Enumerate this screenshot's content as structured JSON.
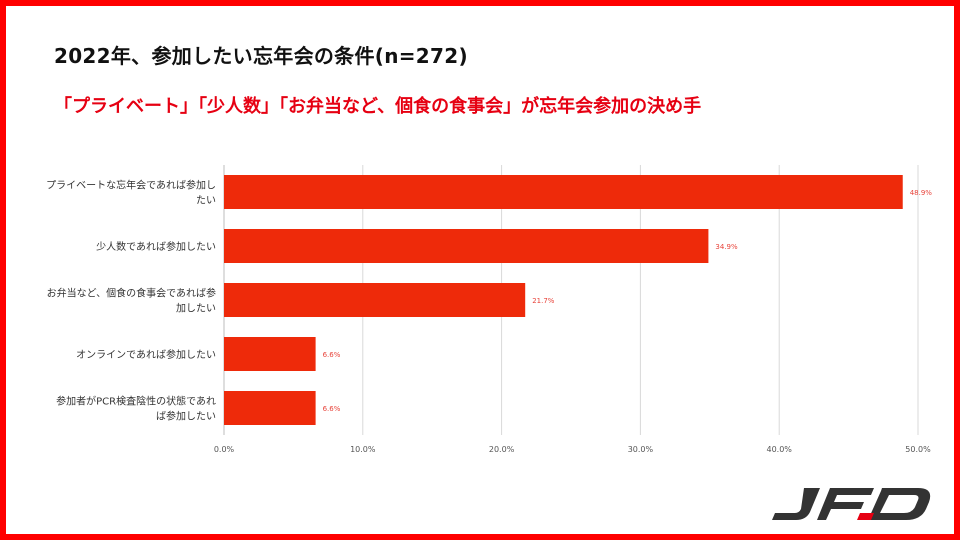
{
  "slide": {
    "title": "2022年、参加したい忘年会の条件(n=272)",
    "subtitle": "「プライベート」「少人数」「お弁当など、個食の食事会」が忘年会参加の決め手",
    "logo_text": "JFD",
    "colors": {
      "frame": "#ff0000",
      "subtitle": "#e60012",
      "bar": "#ee2a0a",
      "value_label": "#e8433a",
      "grid": "#d9d9d9"
    }
  },
  "chart_data": {
    "type": "bar",
    "orientation": "horizontal",
    "categories": [
      [
        "プライベートな忘年会であれば参加し",
        "たい"
      ],
      [
        "少人数であれば参加したい"
      ],
      [
        "お弁当など、個食の食事会であれば参",
        "加したい"
      ],
      [
        "オンラインであれば参加したい"
      ],
      [
        "参加者がPCR検査陰性の状態であれ",
        "ば参加したい"
      ]
    ],
    "values": [
      48.9,
      34.9,
      21.7,
      6.6,
      6.6
    ],
    "value_labels": [
      "48.9%",
      "34.9%",
      "21.7%",
      "6.6%",
      "6.6%"
    ],
    "x_ticks": [
      "0.0%",
      "10.0%",
      "20.0%",
      "30.0%",
      "40.0%",
      "50.0%"
    ],
    "xlim": [
      0,
      50
    ],
    "grid": true
  }
}
